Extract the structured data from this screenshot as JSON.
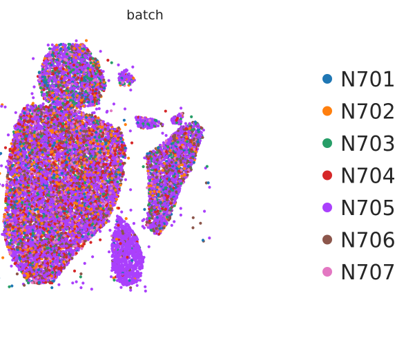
{
  "chart_data": {
    "type": "scatter",
    "title": "batch",
    "xlabel": "",
    "ylabel": "",
    "axes_visible": false,
    "grid": false,
    "legend_placement": "right",
    "series": [
      {
        "name": "N701",
        "color": "#1f77b4"
      },
      {
        "name": "N702",
        "color": "#ff7f0e"
      },
      {
        "name": "N703",
        "color": "#279e68"
      },
      {
        "name": "N704",
        "color": "#d62728"
      },
      {
        "name": "N705",
        "color": "#aa40fc"
      },
      {
        "name": "N706",
        "color": "#8c564b"
      },
      {
        "name": "N707",
        "color": "#e377c2"
      }
    ],
    "clusters": [
      {
        "shape": [
          [
            0.19,
            0.02
          ],
          [
            0.28,
            0.02
          ],
          [
            0.33,
            0.08
          ],
          [
            0.36,
            0.17
          ],
          [
            0.33,
            0.24
          ],
          [
            0.22,
            0.26
          ],
          [
            0.14,
            0.22
          ],
          [
            0.12,
            0.14
          ],
          [
            0.15,
            0.06
          ]
        ],
        "weights": [
          0.08,
          0.1,
          0.12,
          0.08,
          0.45,
          0.1,
          0.07
        ]
      },
      {
        "shape": [
          [
            0.4,
            0.13
          ],
          [
            0.43,
            0.11
          ],
          [
            0.46,
            0.15
          ],
          [
            0.44,
            0.17
          ],
          [
            0.41,
            0.17
          ]
        ],
        "weights": [
          0.05,
          0.05,
          0.05,
          0.05,
          0.7,
          0.05,
          0.05
        ]
      },
      {
        "shape": [
          [
            0.08,
            0.24
          ],
          [
            0.22,
            0.25
          ],
          [
            0.32,
            0.28
          ],
          [
            0.37,
            0.31
          ],
          [
            0.41,
            0.33
          ],
          [
            0.43,
            0.4
          ],
          [
            0.42,
            0.5
          ],
          [
            0.4,
            0.58
          ],
          [
            0.36,
            0.67
          ],
          [
            0.3,
            0.73
          ],
          [
            0.24,
            0.8
          ],
          [
            0.17,
            0.89
          ],
          [
            0.09,
            0.89
          ],
          [
            0.03,
            0.8
          ],
          [
            0.0,
            0.7
          ],
          [
            0.01,
            0.58
          ],
          [
            0.02,
            0.44
          ],
          [
            0.04,
            0.32
          ]
        ],
        "weights": [
          0.06,
          0.1,
          0.04,
          0.14,
          0.46,
          0.12,
          0.08
        ]
      },
      {
        "shape": [
          [
            0.4,
            0.64
          ],
          [
            0.46,
            0.7
          ],
          [
            0.49,
            0.8
          ],
          [
            0.48,
            0.88
          ],
          [
            0.42,
            0.9
          ],
          [
            0.38,
            0.84
          ],
          [
            0.38,
            0.74
          ]
        ],
        "weights": [
          0.01,
          0.01,
          0.01,
          0.02,
          0.92,
          0.02,
          0.01
        ]
      },
      {
        "shape": [
          [
            0.5,
            0.42
          ],
          [
            0.57,
            0.37
          ],
          [
            0.62,
            0.32
          ],
          [
            0.67,
            0.3
          ],
          [
            0.7,
            0.33
          ],
          [
            0.68,
            0.4
          ],
          [
            0.66,
            0.47
          ],
          [
            0.62,
            0.54
          ],
          [
            0.58,
            0.66
          ],
          [
            0.54,
            0.72
          ],
          [
            0.5,
            0.68
          ],
          [
            0.51,
            0.58
          ]
        ],
        "weights": [
          0.08,
          0.04,
          0.08,
          0.08,
          0.48,
          0.18,
          0.06
        ]
      },
      {
        "shape": [
          [
            0.46,
            0.28
          ],
          [
            0.52,
            0.29
          ],
          [
            0.56,
            0.31
          ],
          [
            0.5,
            0.33
          ],
          [
            0.47,
            0.32
          ]
        ],
        "weights": [
          0.05,
          0.05,
          0.05,
          0.05,
          0.7,
          0.05,
          0.05
        ]
      },
      {
        "shape": [
          [
            0.58,
            0.28
          ],
          [
            0.63,
            0.27
          ],
          [
            0.62,
            0.31
          ],
          [
            0.59,
            0.31
          ]
        ],
        "weights": [
          0.05,
          0.05,
          0.05,
          0.1,
          0.55,
          0.15,
          0.05
        ]
      }
    ]
  }
}
